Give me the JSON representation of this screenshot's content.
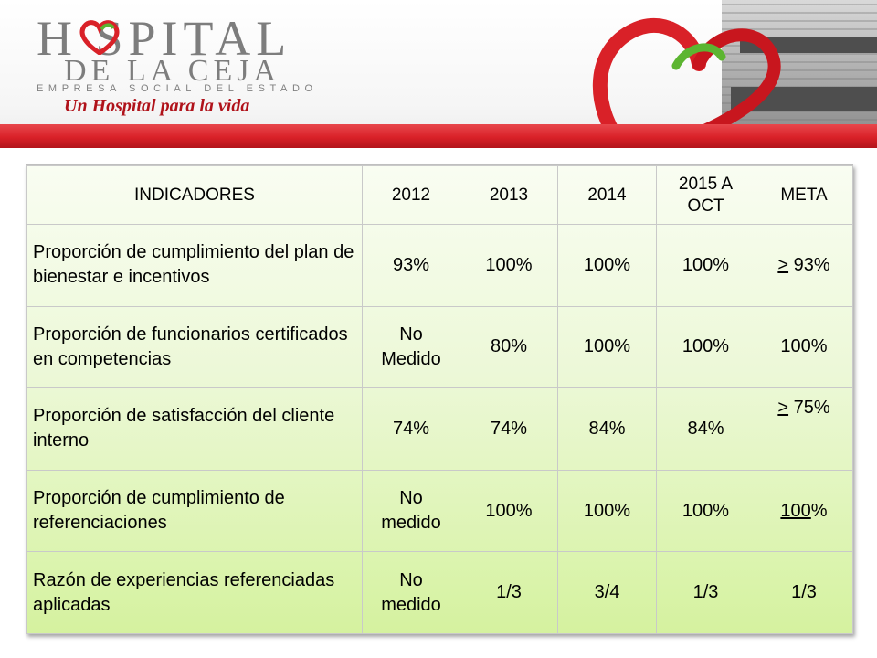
{
  "header": {
    "logo_title": "H  SPITAL",
    "logo_subtitle": "DE LA CEJA",
    "logo_tagline": "EMPRESA SOCIAL DEL ESTADO",
    "slogan": "Un Hospital para la vida",
    "colors": {
      "brand_red": "#d92128",
      "brand_gray": "#7d7d7d",
      "brand_green": "#5cb531"
    }
  },
  "table": {
    "columns": [
      "INDICADORES",
      "2012",
      "2013",
      "2014",
      "2015 A OCT",
      "META"
    ],
    "rows": [
      {
        "indicator": "Proporción de cumplimiento del plan de bienestar e incentivos",
        "y2012": "93%",
        "y2013": "100%",
        "y2014": "100%",
        "y2015": "100%",
        "meta_sym": ">",
        "meta_rest": " 93%"
      },
      {
        "indicator": "Proporción de funcionarios certificados en competencias",
        "y2012": "No Medido",
        "y2013": "80%",
        "y2014": "100%",
        "y2015": "100%",
        "meta_sym": "",
        "meta_rest": "100%"
      },
      {
        "indicator": "Proporción de satisfacción del cliente interno",
        "y2012": "74%",
        "y2013": "74%",
        "y2014": "84%",
        "y2015": "84%",
        "meta_sym": ">",
        "meta_rest": " 75%"
      },
      {
        "indicator": "Proporción de cumplimiento de referenciaciones",
        "y2012": "No medido",
        "y2013": "100%",
        "y2014": "100%",
        "y2015": "100%",
        "meta_sym": "100",
        "meta_rest": "%"
      },
      {
        "indicator": "Razón de experiencias referenciadas aplicadas",
        "y2012": "No medido",
        "y2013": "1/3",
        "y2014": "3/4",
        "y2015": "1/3",
        "meta_sym": "",
        "meta_rest": "1/3"
      }
    ],
    "colors": {
      "fill_top": "#f9fdf2",
      "fill_bottom": "#d5f29f",
      "grid": "#c9c9c9"
    }
  }
}
